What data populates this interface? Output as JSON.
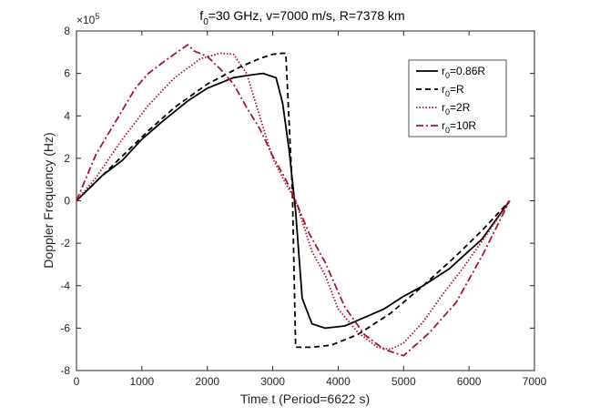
{
  "chart_data": {
    "type": "line",
    "title": {
      "prefix": "f",
      "sub": "0",
      "rest": "=30 GHz, v=7000 m/s, R=7378 km"
    },
    "xlabel": "Time t (Period=6622 s)",
    "ylabel": "Doppler Frequency (Hz)",
    "xlim": [
      0,
      7000
    ],
    "ylim": [
      -8,
      8
    ],
    "y_multiplier": {
      "base": "×10",
      "exp": "5"
    },
    "xticks": [
      0,
      1000,
      2000,
      3000,
      4000,
      5000,
      6000,
      7000
    ],
    "yticks": [
      -8,
      -6,
      -4,
      -2,
      0,
      2,
      4,
      6,
      8
    ],
    "legend_position": "top-right",
    "series": [
      {
        "name": "r0=0.86R",
        "legend": {
          "prefix": "r",
          "sub": "0",
          "rest": "=0.86R"
        },
        "color": "#000000",
        "dash": "solid",
        "x": [
          0,
          200,
          400,
          700,
          1000,
          1300,
          1700,
          2000,
          2400,
          2600,
          2850,
          2950,
          3050,
          3150,
          3250,
          3350,
          3450,
          3600,
          3800,
          4100,
          4400,
          4700,
          5000,
          5300,
          5700,
          6200,
          6622
        ],
        "y": [
          0,
          0.6,
          1.2,
          1.9,
          2.9,
          3.7,
          4.7,
          5.3,
          5.8,
          5.9,
          6.0,
          5.9,
          5.8,
          4.6,
          2.4,
          -0.5,
          -4.6,
          -5.8,
          -6.0,
          -5.9,
          -5.5,
          -5.1,
          -4.5,
          -4.0,
          -3.2,
          -1.8,
          0
        ]
      },
      {
        "name": "r0=R",
        "legend": {
          "prefix": "r",
          "sub": "0",
          "rest": "=R"
        },
        "color": "#000000",
        "dash": "dashed",
        "x": [
          0,
          300,
          700,
          1100,
          1500,
          2000,
          2500,
          2800,
          3000,
          3150,
          3200,
          3300,
          3350,
          3600,
          3900,
          4300,
          4800,
          5300,
          5800,
          6200,
          6622
        ],
        "y": [
          0,
          0.9,
          2.1,
          3.3,
          4.4,
          5.5,
          6.3,
          6.7,
          6.9,
          6.95,
          6.95,
          0.5,
          -6.9,
          -6.9,
          -6.8,
          -6.3,
          -5.3,
          -4.0,
          -2.6,
          -1.4,
          0
        ]
      },
      {
        "name": "r0=2R",
        "legend": {
          "prefix": "r",
          "sub": "0",
          "rest": "=2R"
        },
        "color": "#a3172a",
        "dash": "dotted",
        "x": [
          0,
          300,
          700,
          1100,
          1500,
          1900,
          2200,
          2400,
          2600,
          2800,
          3000,
          3200,
          3350,
          3600,
          3800,
          4000,
          4300,
          4600,
          4800,
          5000,
          5300,
          5600,
          5900,
          6200,
          6622
        ],
        "y": [
          0,
          1.1,
          2.9,
          4.5,
          5.8,
          6.7,
          6.95,
          6.9,
          6.0,
          4.0,
          2.0,
          0.8,
          0.0,
          -2.4,
          -3.5,
          -5.1,
          -6.2,
          -6.9,
          -7.0,
          -6.7,
          -5.7,
          -4.4,
          -3.2,
          -1.9,
          0
        ]
      },
      {
        "name": "r0=10R",
        "legend": {
          "prefix": "r",
          "sub": "0",
          "rest": "=10R"
        },
        "color": "#a3172a",
        "dash": "dashdot",
        "x": [
          0,
          300,
          650,
          900,
          1100,
          1400,
          1700,
          1800,
          2000,
          2200,
          2400,
          2600,
          2800,
          3000,
          3200,
          3350,
          3550,
          3800,
          4100,
          4400,
          4700,
          5000,
          5400,
          5800,
          6200,
          6622
        ],
        "y": [
          0,
          2.2,
          4.0,
          5.3,
          6.0,
          6.7,
          7.35,
          7.05,
          6.8,
          6.2,
          5.5,
          4.4,
          3.4,
          2.1,
          1.0,
          0.0,
          -1.5,
          -2.9,
          -5.0,
          -6.3,
          -7.0,
          -7.3,
          -6.2,
          -4.8,
          -2.6,
          0
        ]
      }
    ]
  }
}
